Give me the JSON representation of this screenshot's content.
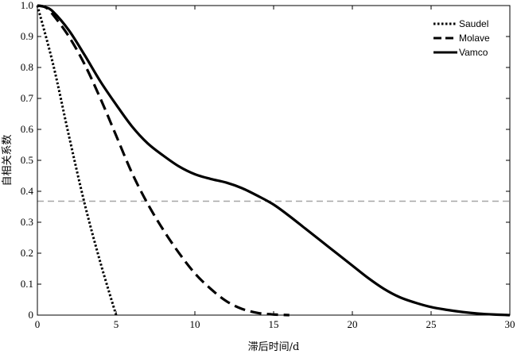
{
  "chart_data": {
    "type": "line",
    "title": "",
    "xlabel": "滞后时间/d",
    "ylabel": "自相关系数",
    "xlim": [
      0,
      30
    ],
    "ylim": [
      0,
      1
    ],
    "xticks": [
      0,
      5,
      10,
      15,
      20,
      25,
      30
    ],
    "yticks": [
      0,
      0.1,
      0.2,
      0.3,
      0.4,
      0.5,
      0.6,
      0.7,
      0.8,
      0.9,
      1.0
    ],
    "xtick_labels": [
      "0",
      "5",
      "10",
      "15",
      "20",
      "25",
      "30"
    ],
    "ytick_labels": [
      "0",
      "0.1",
      "0.2",
      "0.3",
      "0.4",
      "0.5",
      "0.6",
      "0.7",
      "0.8",
      "0.9",
      "1.0"
    ],
    "grid": false,
    "legend_position": "top-right",
    "reference_line": {
      "y": 0.368,
      "color": "#a6a6a6",
      "style": "dashed"
    },
    "series": [
      {
        "name": "Saudel",
        "style": "dotted",
        "color": "#000000",
        "x": [
          0,
          1,
          2,
          3,
          4,
          5
        ],
        "y": [
          1.0,
          0.81,
          0.58,
          0.36,
          0.17,
          0.0
        ]
      },
      {
        "name": "Molave",
        "style": "dashed",
        "color": "#000000",
        "x": [
          0,
          0.5,
          1,
          2,
          3,
          4,
          5,
          6,
          7,
          8,
          9,
          10,
          11,
          12,
          13,
          14,
          15,
          16
        ],
        "y": [
          1.0,
          0.995,
          0.97,
          0.9,
          0.81,
          0.7,
          0.58,
          0.46,
          0.36,
          0.275,
          0.2,
          0.135,
          0.085,
          0.045,
          0.02,
          0.007,
          0.002,
          0.0
        ]
      },
      {
        "name": "Vamco",
        "style": "solid",
        "color": "#000000",
        "x": [
          0,
          0.5,
          1,
          2,
          3,
          4,
          5,
          6,
          7,
          8,
          9,
          10,
          11,
          12,
          13,
          14,
          15,
          16,
          17,
          18,
          19,
          20,
          21,
          22,
          23,
          24,
          25,
          26,
          27,
          28,
          29,
          30
        ],
        "y": [
          1.0,
          0.995,
          0.98,
          0.92,
          0.84,
          0.755,
          0.68,
          0.61,
          0.555,
          0.515,
          0.48,
          0.455,
          0.44,
          0.428,
          0.41,
          0.385,
          0.357,
          0.32,
          0.28,
          0.24,
          0.2,
          0.16,
          0.12,
          0.085,
          0.058,
          0.04,
          0.026,
          0.017,
          0.01,
          0.005,
          0.002,
          0.0
        ]
      }
    ]
  }
}
